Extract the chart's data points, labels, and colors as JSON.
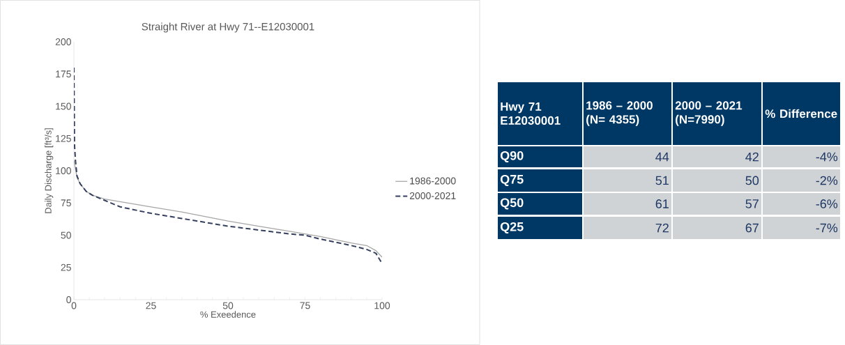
{
  "chart_data": [
    {
      "type": "line",
      "title": "Straight River at Hwy 71--E12030001",
      "xlabel": "% Exeedence",
      "ylabel": "Daily Discharge [ft³/s]",
      "xlim": [
        0,
        100
      ],
      "ylim": [
        0,
        200
      ],
      "xticks": [
        0,
        {
          "value": 5,
          "label": null
        },
        {
          "value": 10,
          "label": null
        },
        {
          "value": 15,
          "label": null
        },
        {
          "value": 20,
          "label": null
        },
        25,
        {
          "value": 30,
          "label": null
        },
        {
          "value": 35,
          "label": null
        },
        {
          "value": 40,
          "label": null
        },
        {
          "value": 45,
          "label": null
        },
        50,
        {
          "value": 55,
          "label": null
        },
        {
          "value": 60,
          "label": null
        },
        {
          "value": 65,
          "label": null
        },
        {
          "value": 70,
          "label": null
        },
        75,
        {
          "value": 80,
          "label": null
        },
        {
          "value": 85,
          "label": null
        },
        {
          "value": 90,
          "label": null
        },
        {
          "value": 95,
          "label": null
        },
        100
      ],
      "yticks": [
        0,
        25,
        50,
        75,
        100,
        125,
        150,
        175,
        200
      ],
      "legend": "right",
      "series": [
        {
          "name": "1986-2000",
          "color": "#a6a6a6",
          "line_style": "solid",
          "x": [
            0,
            1,
            2,
            4,
            6,
            10,
            15,
            25,
            35,
            50,
            60,
            70,
            75,
            80,
            90,
            95,
            98,
            100
          ],
          "values": [
            108,
            95,
            90,
            84,
            81,
            78,
            76,
            72,
            68,
            61,
            57,
            53,
            51,
            49,
            44,
            42,
            38,
            33
          ]
        },
        {
          "name": "2000-2021",
          "color": "#333f5c",
          "line_style": "dashed",
          "x": [
            0,
            0.2,
            0.5,
            1,
            2,
            4,
            6,
            10,
            15,
            25,
            35,
            50,
            60,
            70,
            75,
            80,
            90,
            95,
            98,
            100
          ],
          "values": [
            180,
            120,
            108,
            96,
            90,
            84,
            81,
            77,
            72,
            67,
            63,
            57,
            54,
            51,
            50,
            47,
            42,
            39,
            36,
            28
          ]
        }
      ]
    },
    {
      "type": "other",
      "annotations": [
        "Hwy 71 E12030001"
      ],
      "categories": [
        "1986 – 2000 (N= 4355)",
        "2000 – 2021 (N=7990)",
        "% Difference"
      ],
      "y_categories": [
        "Q90",
        "Q75",
        "Q50",
        "Q25"
      ],
      "cell_labels": [
        [
          "44",
          "42",
          "-4%"
        ],
        [
          "51",
          "50",
          "-2%"
        ],
        [
          "61",
          "57",
          "-6%"
        ],
        [
          "72",
          "67",
          "-7%"
        ]
      ]
    }
  ]
}
